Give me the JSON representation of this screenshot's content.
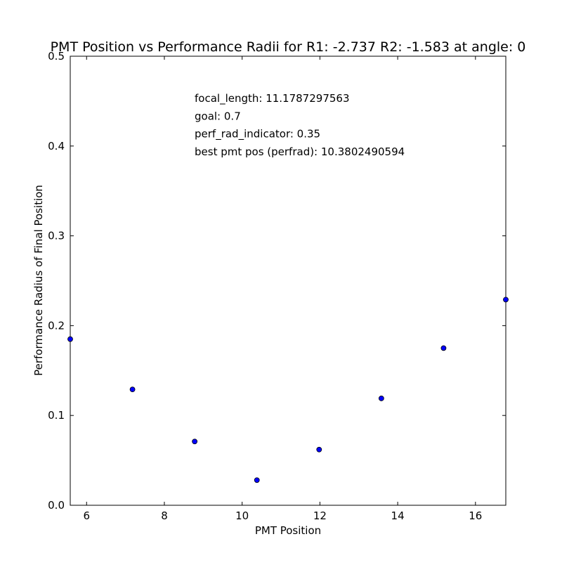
{
  "chart_data": {
    "type": "scatter",
    "title": "PMT Position vs Performance Radii for R1: -2.737 R2: -1.583 at angle: 0",
    "xlabel": "PMT Position",
    "ylabel": "Performance Radius of Final Position",
    "xlim": [
      5.58,
      16.78
    ],
    "ylim": [
      0.0,
      0.5
    ],
    "xticks": [
      6,
      8,
      10,
      12,
      14,
      16
    ],
    "yticks": [
      0.0,
      0.1,
      0.2,
      0.3,
      0.4,
      0.5
    ],
    "ytick_labels": [
      "0.0",
      "0.1",
      "0.2",
      "0.3",
      "0.4",
      "0.5"
    ],
    "grid": false,
    "marker_color": "#0000ff",
    "series": [
      {
        "x": [
          5.58,
          7.18,
          8.78,
          10.38,
          11.98,
          13.58,
          15.18,
          16.78
        ],
        "y": [
          0.185,
          0.129,
          0.071,
          0.028,
          0.062,
          0.119,
          0.175,
          0.229
        ]
      }
    ],
    "annotations": [
      "focal_length: 11.1787297563",
      "goal: 0.7",
      "perf_rad_indicator: 0.35",
      "best pmt pos (perfrad): 10.3802490594"
    ]
  }
}
